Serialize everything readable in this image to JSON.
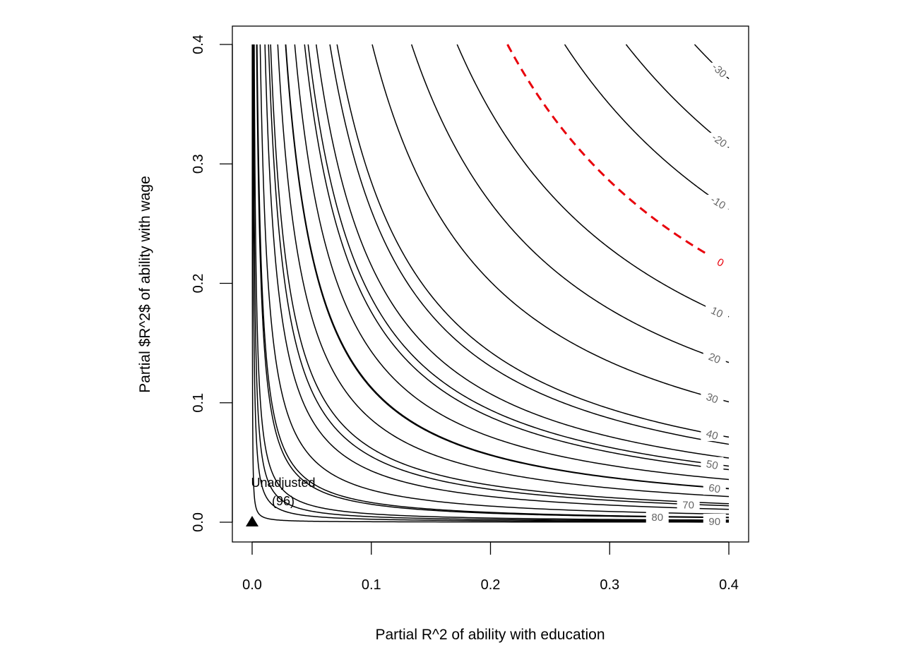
{
  "chart_data": {
    "type": "contour",
    "title": "",
    "xlabel": "Partial R^2 of ability with education",
    "ylabel": "Partial $R^2$ of ability with wage",
    "xlim": [
      0,
      0.4
    ],
    "ylim": [
      0,
      0.4
    ],
    "x_ticks": [
      0.0,
      0.1,
      0.2,
      0.3,
      0.4
    ],
    "y_ticks": [
      0.0,
      0.1,
      0.2,
      0.3,
      0.4
    ],
    "x_tick_labels": [
      "0.0",
      "0.1",
      "0.2",
      "0.3",
      "0.4"
    ],
    "y_tick_labels": [
      "0.0",
      "0.1",
      "0.2",
      "0.3",
      "0.4"
    ],
    "contour_levels": [
      {
        "label": "90",
        "k": 0.00046,
        "color": "#000000",
        "dashed": false
      },
      {
        "label": "80",
        "k": 0.00165,
        "color": "#000000",
        "dashed": false
      },
      {
        "label": "70",
        "k": 0.0055,
        "color": "#000000",
        "dashed": false
      },
      {
        "label": "60",
        "k": 0.0112,
        "color": "#000000",
        "dashed": false
      },
      {
        "label": "50",
        "k": 0.0188,
        "color": "#000000",
        "dashed": false
      },
      {
        "label": "40",
        "k": 0.0285,
        "color": "#000000",
        "dashed": false
      },
      {
        "label": "30",
        "k": 0.0403,
        "color": "#000000",
        "dashed": false
      },
      {
        "label": "20",
        "k": 0.0535,
        "color": "#000000",
        "dashed": false
      },
      {
        "label": "10",
        "k": 0.0688,
        "color": "#000000",
        "dashed": false
      },
      {
        "label": "0",
        "k": 0.0857,
        "color": "#e8000b",
        "dashed": true
      },
      {
        "label": "-10",
        "k": 0.1049,
        "color": "#000000",
        "dashed": false
      },
      {
        "label": "-20",
        "k": 0.1255,
        "color": "#000000",
        "dashed": false
      },
      {
        "label": "-30",
        "k": 0.1485,
        "color": "#000000",
        "dashed": false
      }
    ],
    "unlabeled_contours": [
      {
        "k": 4e-05
      },
      {
        "k": 0.00025
      },
      {
        "k": 0.0007
      },
      {
        "k": 0.0015
      },
      {
        "k": 0.0027
      },
      {
        "k": 0.0043
      },
      {
        "k": 0.0062
      },
      {
        "k": 0.0086
      },
      {
        "k": 0.0113
      },
      {
        "k": 0.0143
      },
      {
        "k": 0.0176
      },
      {
        "k": 0.0215
      },
      {
        "k": 0.0261
      }
    ],
    "points": [
      {
        "x": 0.0,
        "y": 0.0,
        "marker": "triangle",
        "label": "Unadjusted",
        "sublabel": "(96)"
      }
    ]
  }
}
